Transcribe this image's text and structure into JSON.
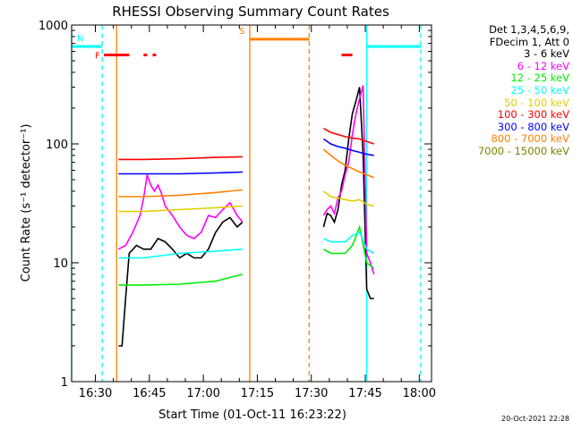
{
  "chart_data": {
    "type": "line",
    "title": "RHESSI Observing Summary Count Rates",
    "xlabel": "Start Time (01-Oct-11 16:23:22)",
    "ylabel": "Count Rate (s⁻¹ detector⁻¹)",
    "yscale": "log",
    "ylim": [
      1,
      1000
    ],
    "xlim_minutes_after_1623": [
      0,
      100
    ],
    "y_ticks": [
      "1",
      "10",
      "100",
      "1000"
    ],
    "x_ticks": [
      {
        "label": "16:30",
        "t": 6.6
      },
      {
        "label": "16:45",
        "t": 21.6
      },
      {
        "label": "17:00",
        "t": 36.6
      },
      {
        "label": "17:15",
        "t": 51.6
      },
      {
        "label": "17:30",
        "t": 66.6
      },
      {
        "label": "17:45",
        "t": 81.6
      },
      {
        "label": "18:00",
        "t": 96.6
      }
    ],
    "detector_info": [
      "Det 1,3,4,5,6,9,",
      "FDecim 1, Att 0"
    ],
    "series": [
      {
        "name": "3 - 6 keV",
        "color": "#000000",
        "segments": [
          {
            "t": [
              13,
              14,
              15,
              16,
              18,
              20,
              22,
              24,
              26,
              28,
              30,
              32,
              34,
              36,
              38,
              40,
              42,
              44,
              46,
              47.5
            ],
            "y": [
              2,
              2,
              5,
              12,
              14,
              13,
              13,
              16,
              15,
              13,
              11,
              12,
              11,
              11,
              13,
              18,
              22,
              24,
              20,
              22
            ]
          },
          {
            "t": [
              70,
              71,
              72,
              73,
              74,
              75,
              76,
              77,
              78,
              79,
              80,
              81,
              82,
              83,
              84
            ],
            "y": [
              20,
              26,
              25,
              22,
              28,
              45,
              60,
              110,
              180,
              230,
              300,
              80,
              6,
              5,
              5
            ]
          }
        ]
      },
      {
        "name": "6 - 12 keV",
        "color": "#ff00ff",
        "segments": [
          {
            "t": [
              13,
              15,
              17,
              19,
              20,
              21,
              22,
              23,
              24,
              25,
              26,
              28,
              30,
              32,
              34,
              36,
              38,
              40,
              42,
              44,
              46,
              47.5
            ],
            "y": [
              13,
              14,
              18,
              25,
              35,
              55,
              45,
              40,
              45,
              38,
              30,
              25,
              20,
              17,
              16,
              18,
              25,
              24,
              28,
              32,
              25,
              22
            ]
          },
          {
            "t": [
              70,
              71,
              72,
              73,
              74,
              75,
              76,
              77,
              78,
              79,
              80,
              81,
              82,
              83,
              84
            ],
            "y": [
              25,
              28,
              30,
              26,
              35,
              40,
              55,
              70,
              120,
              180,
              240,
              310,
              12,
              10,
              8
            ]
          }
        ]
      },
      {
        "name": "12 - 25 keV",
        "color": "#00ee00",
        "segments": [
          {
            "t": [
              13,
              20,
              30,
              40,
              47.5
            ],
            "y": [
              6.5,
              6.5,
              6.6,
              7,
              8
            ]
          },
          {
            "t": [
              70,
              72,
              74,
              76,
              78,
              80,
              82,
              84
            ],
            "y": [
              13,
              12,
              12,
              12,
              14,
              20,
              10,
              9
            ]
          }
        ]
      },
      {
        "name": "25 - 50 keV",
        "color": "#00ffff",
        "segments": [
          {
            "t": [
              13,
              20,
              30,
              40,
              47.5
            ],
            "y": [
              11,
              11,
              12,
              12.5,
              13
            ]
          },
          {
            "t": [
              70,
              72,
              74,
              76,
              78,
              80,
              82,
              84
            ],
            "y": [
              16,
              15,
              15,
              15,
              17,
              18,
              13,
              12
            ]
          }
        ]
      },
      {
        "name": "50 - 100 keV",
        "color": "#e0d000",
        "segments": [
          {
            "t": [
              13,
              20,
              30,
              40,
              47.5
            ],
            "y": [
              27,
              27,
              28,
              29,
              30
            ]
          },
          {
            "t": [
              70,
              72,
              74,
              76,
              78,
              80,
              82,
              84
            ],
            "y": [
              40,
              36,
              35,
              34,
              33,
              34,
              31,
              30
            ]
          }
        ]
      },
      {
        "name": "100 - 300 keV",
        "color": "#ff0000",
        "segments": [
          {
            "t": [
              13,
              20,
              30,
              40,
              47.5
            ],
            "y": [
              74,
              74,
              75,
              77,
              78
            ]
          },
          {
            "t": [
              70,
              72,
              74,
              76,
              78,
              80,
              82,
              84
            ],
            "y": [
              135,
              125,
              120,
              115,
              112,
              110,
              105,
              100
            ]
          }
        ]
      },
      {
        "name": "300 - 800 keV",
        "color": "#0000ff",
        "segments": [
          {
            "t": [
              13,
              20,
              30,
              40,
              47.5
            ],
            "y": [
              56,
              56,
              56,
              57,
              58
            ]
          },
          {
            "t": [
              70,
              72,
              74,
              76,
              78,
              80,
              82,
              84
            ],
            "y": [
              110,
              100,
              95,
              92,
              88,
              85,
              82,
              80
            ]
          }
        ]
      },
      {
        "name": "800 - 7000 keV",
        "color": "#ff8000",
        "segments": [
          {
            "t": [
              13,
              20,
              30,
              40,
              47.5
            ],
            "y": [
              36,
              36,
              37,
              39,
              41
            ]
          },
          {
            "t": [
              70,
              72,
              74,
              76,
              78,
              80,
              82,
              84
            ],
            "y": [
              90,
              80,
              72,
              66,
              62,
              58,
              55,
              52
            ]
          }
        ]
      },
      {
        "name": "7000 - 15000 keV",
        "color": "#808000",
        "segments": []
      }
    ],
    "flags": [
      {
        "label": "N",
        "color": "#00ffff",
        "y": 660,
        "segments": [
          [
            0,
            8.5
          ],
          [
            82,
            97
          ]
        ]
      },
      {
        "label": "F",
        "color": "#ff0000",
        "y": 560,
        "segments": [
          [
            9,
            16
          ],
          [
            20,
            21
          ],
          [
            22.5,
            23.5
          ],
          [
            75,
            78
          ]
        ]
      },
      {
        "label": "S",
        "color": "#ff8000",
        "y": 760,
        "segments": [
          [
            49.5,
            66
          ]
        ]
      }
    ],
    "vlines": [
      {
        "t": 0,
        "color": "#00ffff",
        "style": "solid"
      },
      {
        "t": 8.5,
        "color": "#00ffff",
        "style": "dashed"
      },
      {
        "t": 12.5,
        "color": "#ff8000",
        "style": "solid"
      },
      {
        "t": 49.5,
        "color": "#ff8000",
        "style": "solid"
      },
      {
        "t": 66,
        "color": "#ff8000",
        "style": "dashed"
      },
      {
        "t": 82,
        "color": "#00ffff",
        "style": "solid"
      },
      {
        "t": 97,
        "color": "#00ffff",
        "style": "dashed"
      }
    ]
  },
  "timestamp": "20-Oct-2021 22:28"
}
